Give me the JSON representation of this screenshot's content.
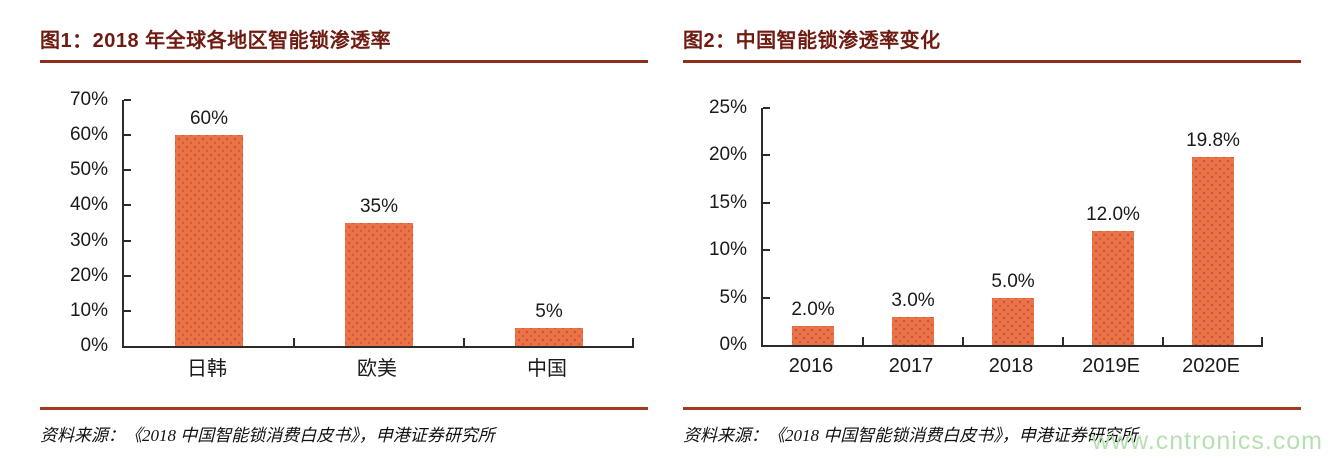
{
  "figure1": {
    "title": "图1：2018 年全球各地区智能锁渗透率",
    "source": "资料来源：《2018 中国智能锁消费白皮书》，申港证券研究所"
  },
  "figure2": {
    "title": "图2：中国智能锁渗透率变化",
    "source": "资料来源：《2018 中国智能锁消费白皮书》，申港证券研究所"
  },
  "watermark": {
    "text": "www.cntronics.com",
    "color": "#B7E0B2"
  },
  "colors": {
    "bar_fill": "#EC7344",
    "bar_dots": "#9E3058",
    "title_text": "#6E1B12",
    "title_rule": "#8E2F1D",
    "source_rule": "#A23C1E",
    "axis": "#2B2B2B",
    "labels": "#1A1A1A"
  },
  "chart_data": [
    {
      "type": "bar",
      "title": "图1：2018 年全球各地区智能锁渗透率",
      "categories": [
        "日韩",
        "欧美",
        "中国"
      ],
      "values": [
        60,
        35,
        5
      ],
      "data_labels": [
        "60%",
        "35%",
        "5%"
      ],
      "xlabel": "",
      "ylabel": "",
      "ylim": [
        0,
        70
      ],
      "ytick_step": 10,
      "ytick_labels": [
        "0%",
        "10%",
        "20%",
        "30%",
        "40%",
        "50%",
        "60%",
        "70%"
      ],
      "grid": false,
      "legend": "none",
      "bar_color": "#EC7344"
    },
    {
      "type": "bar",
      "title": "图2：中国智能锁渗透率变化",
      "categories": [
        "2016",
        "2017",
        "2018",
        "2019E",
        "2020E"
      ],
      "values": [
        2.0,
        3.0,
        5.0,
        12.0,
        19.8
      ],
      "data_labels": [
        "2.0%",
        "3.0%",
        "5.0%",
        "12.0%",
        "19.8%"
      ],
      "xlabel": "",
      "ylabel": "",
      "ylim": [
        0,
        25
      ],
      "ytick_step": 5,
      "ytick_labels": [
        "0%",
        "5%",
        "10%",
        "15%",
        "20%",
        "25%"
      ],
      "grid": false,
      "legend": "none",
      "bar_color": "#EC7344"
    }
  ]
}
